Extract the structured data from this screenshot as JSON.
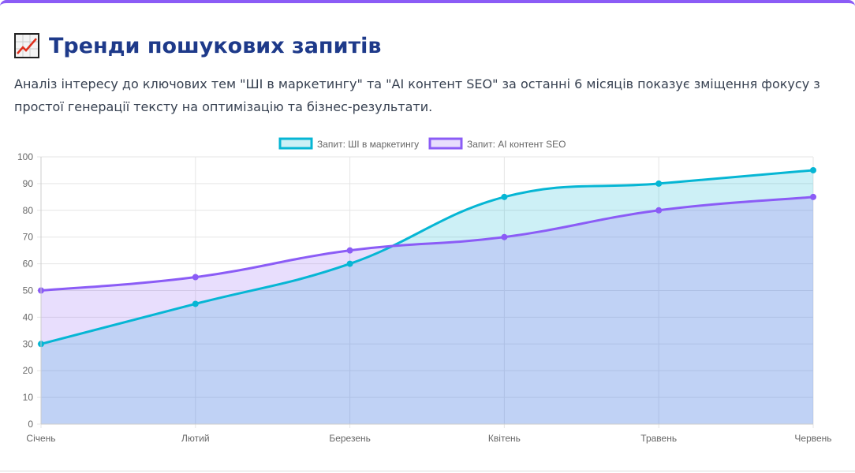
{
  "header": {
    "title": "Тренди пошукових запитів",
    "icon": "chart-increasing-icon",
    "description": "Аналіз інтересу до ключових тем \"ШІ в маркетингу\" та \"AI контент SEO\" за останні 6 місяців показує зміщення фокусу з простої генерації тексту на оптимізацію та бізнес-результати."
  },
  "accent": "#8b5cf6",
  "chart_data": {
    "type": "line",
    "categories": [
      "Січень",
      "Лютий",
      "Березень",
      "Квітень",
      "Травень",
      "Червень"
    ],
    "series": [
      {
        "name": "Запит: ШІ в маркетингу",
        "values": [
          30,
          45,
          60,
          85,
          90,
          95
        ],
        "color": "#06b6d4",
        "fill": "rgba(6,182,212,0.2)"
      },
      {
        "name": "Запит: AI контент SEO",
        "values": [
          50,
          55,
          65,
          70,
          80,
          85
        ],
        "color": "#8b5cf6",
        "fill": "rgba(139,92,246,0.2)"
      }
    ],
    "ylim": [
      0,
      100
    ],
    "yticks": [
      0,
      10,
      20,
      30,
      40,
      50,
      60,
      70,
      80,
      90,
      100
    ],
    "legend": "top",
    "grid": true,
    "xlabel": "",
    "ylabel": ""
  }
}
